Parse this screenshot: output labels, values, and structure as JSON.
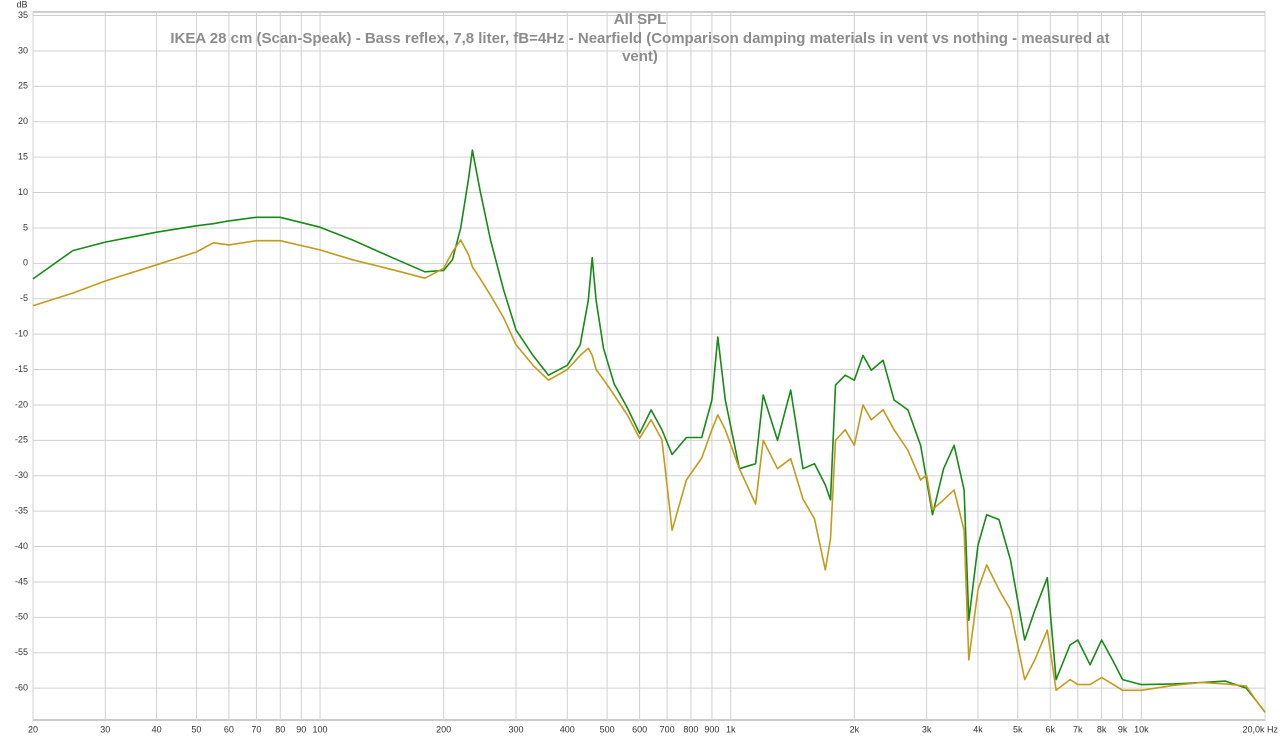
{
  "chart_data": {
    "type": "line",
    "title": "All SPL",
    "subtitle": "IKEA 28 cm (Scan-Speak) - Bass reflex, 7,8 liter, fB=4Hz - Nearfield (Comparison damping materials in vent vs nothing - measured at vent)",
    "y_label": "dB",
    "xscale": "log",
    "grid": true,
    "xlim": [
      20,
      20000
    ],
    "ylim": [
      -64.5,
      35.5
    ],
    "xticks": [
      20,
      30,
      40,
      50,
      60,
      70,
      80,
      90,
      100,
      200,
      300,
      400,
      500,
      600,
      700,
      800,
      900,
      {
        "value": 1000,
        "label": "1k"
      },
      {
        "value": 2000,
        "label": "2k"
      },
      {
        "value": 3000,
        "label": "3k"
      },
      {
        "value": 4000,
        "label": "4k"
      },
      {
        "value": 5000,
        "label": "5k"
      },
      {
        "value": 6000,
        "label": "6k"
      },
      {
        "value": 7000,
        "label": "7k"
      },
      {
        "value": 8000,
        "label": "8k"
      },
      {
        "value": 9000,
        "label": "9k"
      },
      {
        "value": 10000,
        "label": "10k"
      },
      {
        "value": 20000,
        "label": "20,0k Hz"
      }
    ],
    "yticks": [
      35,
      30,
      25,
      20,
      15,
      10,
      5,
      0,
      -5,
      -10,
      -15,
      -20,
      -25,
      -30,
      -35,
      -40,
      -45,
      -50,
      -55,
      -60
    ],
    "x": [
      20,
      25,
      30,
      40,
      50,
      55,
      60,
      70,
      80,
      100,
      120,
      150,
      180,
      200,
      210,
      220,
      230,
      235,
      245,
      260,
      280,
      300,
      330,
      360,
      400,
      430,
      450,
      460,
      470,
      490,
      520,
      560,
      600,
      640,
      680,
      720,
      780,
      850,
      900,
      930,
      970,
      1050,
      1150,
      1200,
      1300,
      1400,
      1500,
      1600,
      1700,
      1750,
      1800,
      1900,
      2000,
      2100,
      2200,
      2350,
      2500,
      2700,
      2900,
      3000,
      3100,
      3300,
      3500,
      3700,
      3800,
      4000,
      4200,
      4500,
      4800,
      5200,
      5500,
      5900,
      6200,
      6700,
      7000,
      7500,
      8000,
      8500,
      9000,
      10000,
      12000,
      14000,
      16000,
      18000,
      19000,
      20000
    ],
    "series": [
      {
        "color": "#178a17",
        "values": [
          -2.2,
          1.8,
          3.0,
          4.4,
          5.3,
          5.6,
          6.0,
          6.5,
          6.5,
          5.1,
          3.3,
          0.8,
          -1.2,
          -1.0,
          0.5,
          5.0,
          12.0,
          16.0,
          10.4,
          3.3,
          -3.8,
          -9.4,
          -13.0,
          -15.8,
          -14.4,
          -11.5,
          -5.2,
          0.8,
          -5.2,
          -12.0,
          -17.0,
          -20.4,
          -24.0,
          -20.7,
          -23.5,
          -27.0,
          -24.6,
          -24.6,
          -19.3,
          -10.4,
          -19.3,
          -29.0,
          -28.3,
          -18.6,
          -25.0,
          -17.9,
          -29.0,
          -28.3,
          -31.3,
          -33.4,
          -17.2,
          -15.8,
          -16.5,
          -13.0,
          -15.1,
          -13.7,
          -19.3,
          -20.7,
          -25.7,
          -30.6,
          -35.5,
          -29.0,
          -25.7,
          -32.0,
          -50.4,
          -39.8,
          -35.5,
          -36.2,
          -41.9,
          -53.2,
          -49.0,
          -44.4,
          -58.8,
          -53.9,
          -53.2,
          -56.7,
          -53.2,
          -56.0,
          -58.8,
          -59.5,
          -59.4,
          -59.2,
          -59.0,
          -60.0,
          -61.7,
          -63.4
        ]
      },
      {
        "color": "#c49a1e",
        "values": [
          -6.0,
          -4.2,
          -2.5,
          -0.2,
          1.6,
          2.9,
          2.6,
          3.2,
          3.2,
          1.9,
          0.5,
          -0.9,
          -2.1,
          -0.7,
          1.6,
          3.3,
          1.2,
          -0.5,
          -2.1,
          -4.5,
          -7.7,
          -11.5,
          -14.4,
          -16.5,
          -15.0,
          -13.0,
          -12.0,
          -13.0,
          -15.0,
          -16.4,
          -18.6,
          -21.4,
          -24.7,
          -22.1,
          -24.9,
          -37.7,
          -30.6,
          -27.5,
          -23.5,
          -21.4,
          -23.5,
          -29.0,
          -34.0,
          -25.0,
          -29.0,
          -27.6,
          -33.3,
          -36.1,
          -43.3,
          -38.9,
          -25.0,
          -23.5,
          -25.7,
          -20.0,
          -22.1,
          -20.7,
          -23.5,
          -26.4,
          -30.6,
          -29.9,
          -34.8,
          -33.4,
          -32.0,
          -37.7,
          -56.0,
          -46.1,
          -42.6,
          -46.1,
          -48.9,
          -58.8,
          -56.0,
          -51.8,
          -60.3,
          -58.8,
          -59.5,
          -59.5,
          -58.5,
          -59.4,
          -60.3,
          -60.3,
          -59.6,
          -59.2,
          -59.4,
          -59.7,
          -61.7,
          -63.4
        ]
      }
    ]
  }
}
